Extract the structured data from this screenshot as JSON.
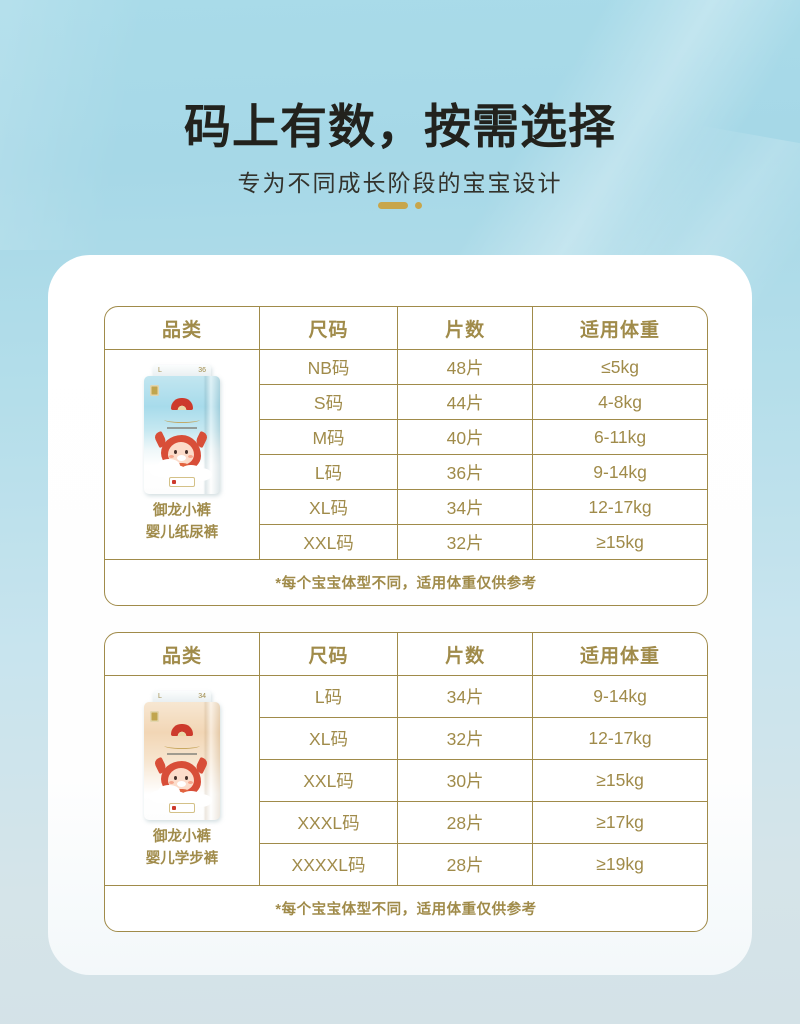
{
  "header": {
    "title": "码上有数，按需选择",
    "subtitle": "专为不同成长阶段的宝宝设计"
  },
  "colors": {
    "gold": "#a08b4a",
    "divider_gold": "#c8a64b",
    "title_dark": "#22221d",
    "sky_top": "#a9dbe9",
    "sky_bottom": "#d4e2e7",
    "logo_red": "#cd3a2c"
  },
  "tables": [
    {
      "columns": [
        "品类",
        "尺码",
        "片数",
        "适用体重"
      ],
      "product": {
        "name_line1": "御龙小裤",
        "name_line2": "婴儿纸尿裤",
        "tag_left": "L",
        "tag_right": "36"
      },
      "rows": [
        {
          "size": "NB码",
          "count": "48片",
          "weight": "≤5kg"
        },
        {
          "size": "S码",
          "count": "44片",
          "weight": "4-8kg"
        },
        {
          "size": "M码",
          "count": "40片",
          "weight": "6-11kg"
        },
        {
          "size": "L码",
          "count": "36片",
          "weight": "9-14kg"
        },
        {
          "size": "XL码",
          "count": "34片",
          "weight": "12-17kg"
        },
        {
          "size": "XXL码",
          "count": "32片",
          "weight": "≥15kg"
        }
      ],
      "note": "*每个宝宝体型不同，适用体重仅供参考"
    },
    {
      "columns": [
        "品类",
        "尺码",
        "片数",
        "适用体重"
      ],
      "product": {
        "name_line1": "御龙小裤",
        "name_line2": "婴儿学步裤",
        "tag_left": "L",
        "tag_right": "34"
      },
      "rows": [
        {
          "size": "L码",
          "count": "34片",
          "weight": "9-14kg"
        },
        {
          "size": "XL码",
          "count": "32片",
          "weight": "12-17kg"
        },
        {
          "size": "XXL码",
          "count": "30片",
          "weight": "≥15kg"
        },
        {
          "size": "XXXL码",
          "count": "28片",
          "weight": "≥17kg"
        },
        {
          "size": "XXXXL码",
          "count": "28片",
          "weight": "≥19kg"
        }
      ],
      "note": "*每个宝宝体型不同，适用体重仅供参考"
    }
  ]
}
